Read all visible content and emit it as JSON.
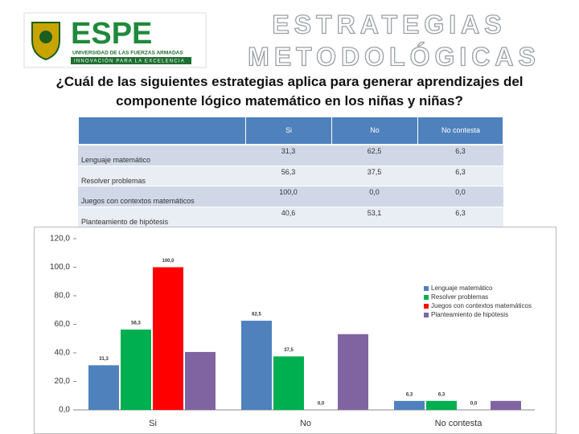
{
  "header": {
    "logo_text": "ESPE",
    "logo_subtitle": "UNIVERSIDAD DE LAS FUERZAS ARMADAS",
    "logo_motto": "INNOVACIÓN PARA LA EXCELENCIA",
    "title_lines": [
      "ESTRATEGIAS",
      "METODOLÓGICAS"
    ]
  },
  "question": "¿Cuál de las siguientes estrategias aplica para generar aprendizajes del componente lógico matemático en los niñas y niñas?",
  "table": {
    "columns": [
      "Si",
      "No",
      "No contesta"
    ],
    "rows": [
      {
        "label": "Lenguaje matemático",
        "cells": [
          "31,3",
          "62,5",
          "6,3"
        ]
      },
      {
        "label": "Resolver problemas",
        "cells": [
          "56,3",
          "37,5",
          "6,3"
        ]
      },
      {
        "label": "Juegos con contextos matemáticos",
        "cells": [
          "100,0",
          "0,0",
          "0,0"
        ]
      },
      {
        "label": "Planteamiento de hipótesis",
        "cells": [
          "40,6",
          "53,1",
          "6,3"
        ]
      }
    ]
  },
  "chart_data": {
    "type": "bar",
    "categories": [
      "Si",
      "No",
      "No contesta"
    ],
    "series": [
      {
        "name": "Lenguaje matemático",
        "color": "#4f81bd",
        "values": [
          31.3,
          62.5,
          6.3
        ],
        "value_labels": [
          "31,3",
          "62,5",
          "6,3"
        ]
      },
      {
        "name": "Resolver problemas",
        "color": "#00b050",
        "values": [
          56.3,
          37.5,
          6.3
        ],
        "value_labels": [
          "56,3",
          "37,5",
          "6,3"
        ]
      },
      {
        "name": "Juegos con contextos matemáticos",
        "color": "#ff0000",
        "values": [
          100,
          0,
          0
        ],
        "value_labels": [
          "100,0",
          "0,0",
          "0,0"
        ]
      },
      {
        "name": "Planteamiento de hipótesis",
        "color": "#8064a2",
        "values": [
          40.6,
          53.1,
          6.3
        ],
        "value_labels": [
          null,
          null,
          null
        ]
      }
    ],
    "ylim": [
      0,
      120
    ],
    "yticks": [
      {
        "value": 0,
        "label": "0,0"
      },
      {
        "value": 20,
        "label": "20,0"
      },
      {
        "value": 40,
        "label": "40,0"
      },
      {
        "value": 60,
        "label": "60,0"
      },
      {
        "value": 80,
        "label": "80,0"
      },
      {
        "value": 100,
        "label": "100,0"
      },
      {
        "value": 120,
        "label": "120,0"
      }
    ],
    "legend": "right"
  }
}
